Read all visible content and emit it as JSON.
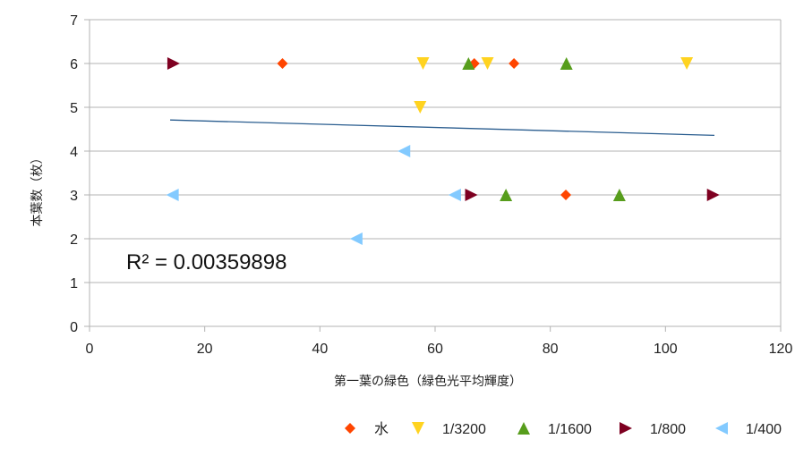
{
  "chart_data": {
    "type": "scatter",
    "xlabel": "第一葉の緑色（緑色光平均輝度）",
    "ylabel": "本葉数（枚）",
    "xlim": [
      0,
      120
    ],
    "ylim": [
      0,
      7
    ],
    "x_ticks": [
      "0",
      "20",
      "40",
      "60",
      "80",
      "100",
      "120"
    ],
    "y_ticks": [
      "0",
      "1",
      "2",
      "3",
      "4",
      "5",
      "6",
      "7"
    ],
    "grid": "horizontal",
    "legend_position": "bottom-right",
    "series": [
      {
        "name": "水",
        "marker": "diamond",
        "color": "#ff4500",
        "points": [
          [
            33.5,
            6
          ],
          [
            66.8,
            6
          ],
          [
            73.7,
            6
          ],
          [
            82.7,
            3
          ]
        ]
      },
      {
        "name": "1/3200",
        "marker": "triangle-down",
        "color": "#ffd320",
        "points": [
          [
            57.9,
            6
          ],
          [
            69.1,
            6
          ],
          [
            103.7,
            6
          ],
          [
            57.4,
            5
          ]
        ]
      },
      {
        "name": "1/1600",
        "marker": "triangle-up",
        "color": "#579d1c",
        "points": [
          [
            65.8,
            6
          ],
          [
            82.8,
            6
          ],
          [
            72.3,
            3
          ],
          [
            92.0,
            3
          ]
        ]
      },
      {
        "name": "1/800",
        "marker": "triangle-right",
        "color": "#7e0021",
        "points": [
          [
            14.6,
            6
          ],
          [
            66.3,
            3
          ],
          [
            108.3,
            3
          ]
        ]
      },
      {
        "name": "1/400",
        "marker": "triangle-left",
        "color": "#83caff",
        "points": [
          [
            14.4,
            3
          ],
          [
            54.6,
            4
          ],
          [
            63.4,
            3
          ],
          [
            46.3,
            2
          ]
        ]
      }
    ],
    "trendline": {
      "type": "linear",
      "from": [
        14.0,
        4.71
      ],
      "to": [
        108.5,
        4.36
      ],
      "color": "#2a5d8f"
    },
    "annotation": "R² = 0.00359898"
  }
}
